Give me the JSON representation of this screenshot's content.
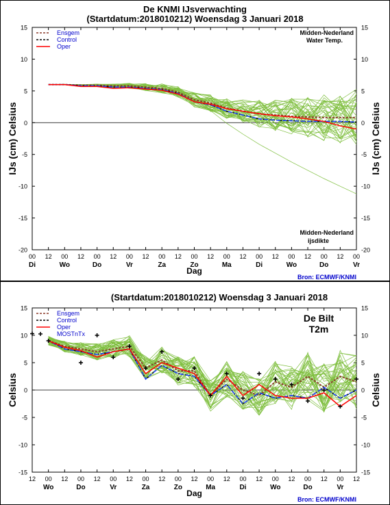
{
  "colors": {
    "ensgem": "#8b3a2a",
    "control": "#000000",
    "oper": "#ff0000",
    "mos": "#000000",
    "members": "#7fbf3f",
    "source": "#0000cc",
    "legend_text": "#0000cc"
  },
  "chart_data": [
    {
      "type": "line",
      "title": "De KNMI IJsverwachting",
      "subtitle": "(Startdatum:2018010212)  Woensdag  3 Januari 2018",
      "ylabel_left": "IJs (cm)  Celsius",
      "ylabel_right": "IJs (cm)  Celsius",
      "xlabel": "Dag",
      "ylim": [
        -20,
        15
      ],
      "yticks": [
        -20,
        -15,
        -10,
        -5,
        0,
        5,
        10,
        15
      ],
      "x_hour_labels": [
        "00",
        "12",
        "00",
        "12",
        "00",
        "12",
        "00",
        "12",
        "00",
        "12",
        "00",
        "12",
        "00",
        "12",
        "00",
        "12",
        "00",
        "12",
        "00",
        "12",
        "00"
      ],
      "x_day_labels": [
        "Di",
        "Wo",
        "Do",
        "Vr",
        "Za",
        "Zo",
        "Ma",
        "Di",
        "Wo",
        "Do",
        "Vr"
      ],
      "annotations": [
        "Midden-Nederland",
        "Water Temp.",
        "Midden-Nederland",
        "ijsdikte"
      ],
      "source": "Bron: ECMWF/KNMI",
      "legend": [
        "Ensgem",
        "Control",
        "Oper"
      ],
      "x": [
        0,
        1,
        2,
        3,
        4,
        5,
        6,
        7,
        8,
        9,
        10,
        11,
        12,
        13,
        14,
        15,
        16,
        17,
        18,
        19,
        20
      ],
      "series": [
        {
          "name": "Ensgem",
          "values": [
            null,
            6.0,
            6.0,
            5.9,
            5.9,
            5.8,
            5.8,
            5.6,
            5.4,
            4.8,
            3.6,
            3.1,
            2.3,
            1.8,
            1.4,
            1.2,
            1.0,
            0.9,
            0.8,
            0.8,
            0.8
          ]
        },
        {
          "name": "Control",
          "values": [
            null,
            6.0,
            6.0,
            5.8,
            5.8,
            5.6,
            5.6,
            5.4,
            5.2,
            4.6,
            3.3,
            2.8,
            1.8,
            1.2,
            0.6,
            0.4,
            0.3,
            0.2,
            0.2,
            0.2,
            0.1
          ]
        },
        {
          "name": "Oper",
          "values": [
            null,
            6.0,
            6.0,
            5.7,
            5.7,
            5.4,
            5.5,
            5.3,
            5.1,
            4.5,
            3.3,
            2.9,
            2.2,
            1.8,
            1.4,
            1.1,
            0.9,
            0.6,
            0.2,
            -0.5,
            -1.0
          ]
        }
      ],
      "members_range": {
        "x": [
          1,
          20
        ],
        "min_end": -11.0,
        "max_end": 3.2
      }
    },
    {
      "type": "line",
      "title": "(Startdatum:2018010212)  Woensdag  3 Januari 2018",
      "ylabel_left": "Celsius",
      "ylabel_right": "Celsius",
      "xlabel": "Dag",
      "ylim": [
        -15,
        15
      ],
      "yticks": [
        -15,
        -10,
        -5,
        0,
        5,
        10,
        15
      ],
      "x_hour_labels": [
        "12",
        "00",
        "12",
        "00",
        "12",
        "00",
        "12",
        "00",
        "12",
        "00",
        "12",
        "00",
        "12",
        "00",
        "12",
        "00",
        "12",
        "00",
        "12",
        "00",
        "12"
      ],
      "x_day_labels": [
        "Wo",
        "Do",
        "Vr",
        "Za",
        "Zo",
        "Ma",
        "Di",
        "Wo",
        "Do",
        "Vr"
      ],
      "annotations": [
        "De Bilt",
        "T2m"
      ],
      "source": "Bron: ECMWF/KNMI",
      "legend": [
        "Ensgem",
        "Control",
        "Oper",
        "MOSTnTx"
      ],
      "x": [
        0,
        1,
        2,
        3,
        4,
        5,
        6,
        7,
        8,
        9,
        10,
        11,
        12,
        13,
        14,
        15,
        16,
        17,
        18,
        19,
        20
      ],
      "series": [
        {
          "name": "Ensgem",
          "values": [
            null,
            9.0,
            8.0,
            7.5,
            7.0,
            7.5,
            8.0,
            4.0,
            5.5,
            3.5,
            3.5,
            -1.0,
            2.0,
            0.0,
            -1.0,
            1.5,
            0.5,
            2.5,
            0.5,
            2.5,
            1.5
          ]
        },
        {
          "name": "Control",
          "values": [
            null,
            9.0,
            7.5,
            7.0,
            6.5,
            7.0,
            7.5,
            2.0,
            4.5,
            3.0,
            2.5,
            -1.0,
            1.0,
            -2.5,
            -0.5,
            -1.5,
            -1.0,
            -1.5,
            0.5,
            -1.5,
            0.0
          ]
        },
        {
          "name": "Oper",
          "values": [
            null,
            9.0,
            7.8,
            7.2,
            6.0,
            7.0,
            7.5,
            3.0,
            5.0,
            4.0,
            3.0,
            -1.0,
            2.5,
            -1.0,
            1.0,
            -1.0,
            -1.5,
            -1.5,
            -0.5,
            -3.0,
            -1.0
          ]
        },
        {
          "name": "MOSTnTx",
          "values": [
            10.3,
            9.0,
            null,
            5.0,
            10.0,
            6.0,
            8.0,
            4.0,
            7.0,
            2.0,
            4.0,
            -1.0,
            3.0,
            -1.5,
            3.0,
            2.0,
            1.0,
            -2.0,
            0.0,
            -3.0,
            2.0
          ]
        }
      ]
    }
  ]
}
